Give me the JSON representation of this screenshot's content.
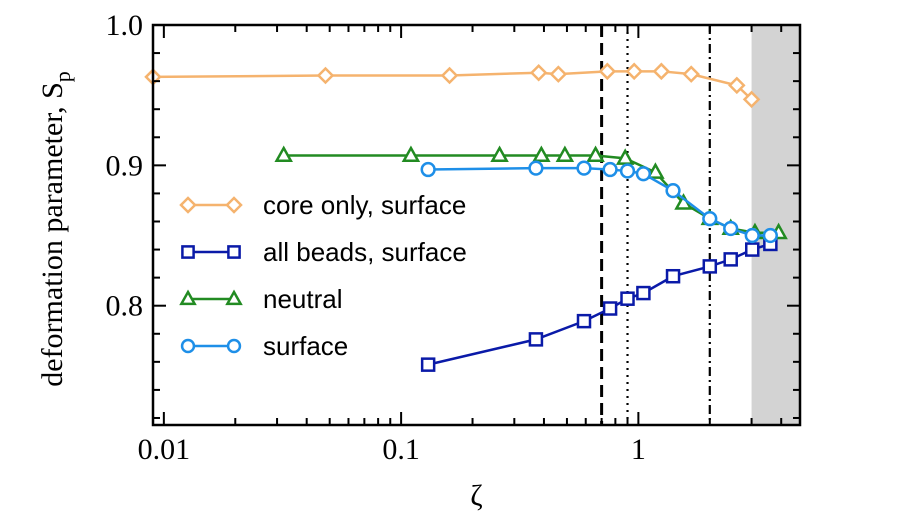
{
  "chart_data": {
    "type": "scatter",
    "title": "",
    "xlabel": "ζ",
    "ylabel": "deformation parameter, S",
    "ylabel_subscript": "p",
    "x_scale": "log",
    "xlim": [
      0.009,
      4.8
    ],
    "ylim": [
      0.715,
      1.0
    ],
    "x_ticks": [
      {
        "value": 0.01,
        "label": "0.01"
      },
      {
        "value": 0.1,
        "label": "0.1"
      },
      {
        "value": 1,
        "label": "1"
      }
    ],
    "y_ticks": [
      {
        "value": 0.8,
        "label": "0.8"
      },
      {
        "value": 0.9,
        "label": "0.9"
      },
      {
        "value": 1.0,
        "label": "1.0"
      }
    ],
    "shaded_region": {
      "x_from": 3.0,
      "x_to": 4.8,
      "color": "#d3d3d3"
    },
    "vertical_lines": [
      {
        "x": 0.7,
        "style": "dashed"
      },
      {
        "x": 0.9,
        "style": "dotted"
      },
      {
        "x": 2.0,
        "style": "dashdot"
      }
    ],
    "legend_position": "center-left",
    "series": [
      {
        "name": "core only, surface",
        "marker": "diamond",
        "color": "#f5b36e",
        "x": [
          0.009,
          0.048,
          0.16,
          0.38,
          0.46,
          0.74,
          0.96,
          1.25,
          1.67,
          2.6,
          3.0
        ],
        "y": [
          0.963,
          0.964,
          0.964,
          0.966,
          0.965,
          0.967,
          0.967,
          0.967,
          0.965,
          0.957,
          0.947
        ]
      },
      {
        "name": "all beads, surface",
        "marker": "square",
        "color": "#0a1aa8",
        "x": [
          0.13,
          0.37,
          0.59,
          0.76,
          0.9,
          1.05,
          1.4,
          2.0,
          2.45,
          3.02,
          3.6
        ],
        "y": [
          0.758,
          0.776,
          0.789,
          0.798,
          0.805,
          0.809,
          0.821,
          0.828,
          0.833,
          0.84,
          0.844
        ]
      },
      {
        "name": "neutral",
        "marker": "triangle",
        "color": "#228b22",
        "x": [
          0.032,
          0.11,
          0.26,
          0.39,
          0.49,
          0.66,
          0.88,
          1.18,
          1.55,
          2.0,
          2.45,
          3.1,
          3.9
        ],
        "y": [
          0.907,
          0.907,
          0.907,
          0.907,
          0.907,
          0.907,
          0.905,
          0.895,
          0.873,
          0.862,
          0.855,
          0.852,
          0.852
        ]
      },
      {
        "name": "surface",
        "marker": "circle",
        "color": "#1e8fe8",
        "x": [
          0.13,
          0.37,
          0.59,
          0.76,
          0.9,
          1.05,
          1.4,
          2.0,
          2.45,
          3.02,
          3.6
        ],
        "y": [
          0.897,
          0.898,
          0.898,
          0.897,
          0.896,
          0.894,
          0.882,
          0.862,
          0.855,
          0.85,
          0.85
        ]
      }
    ]
  }
}
